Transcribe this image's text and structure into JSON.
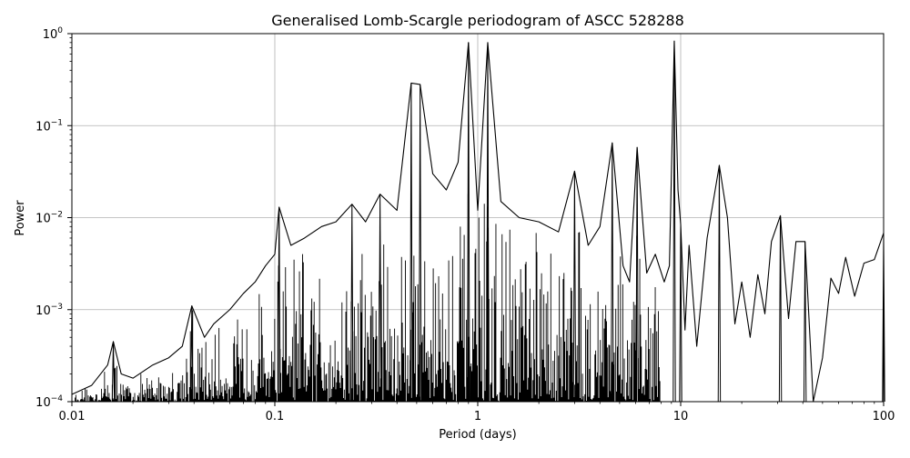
{
  "chart_data": {
    "type": "line",
    "title": "Generalised Lomb-Scargle periodogram of ASCC 528288",
    "xlabel": "Period (days)",
    "ylabel": "Power",
    "xscale": "log",
    "yscale": "log",
    "xlim": [
      0.01,
      100
    ],
    "ylim": [
      0.0001,
      1
    ],
    "grid": true,
    "x_ticks": [
      {
        "value": 0.01,
        "label": "0.01"
      },
      {
        "value": 0.1,
        "label": "0.1"
      },
      {
        "value": 1,
        "label": "1"
      },
      {
        "value": 10,
        "label": "10"
      },
      {
        "value": 100,
        "label": "100"
      }
    ],
    "y_ticks": [
      {
        "value": 0.0001,
        "base": "10",
        "exp": "−4"
      },
      {
        "value": 0.001,
        "base": "10",
        "exp": "−3"
      },
      {
        "value": 0.01,
        "base": "10",
        "exp": "−2"
      },
      {
        "value": 0.1,
        "base": "10",
        "exp": "−1"
      },
      {
        "value": 1,
        "base": "10",
        "exp": "0"
      }
    ],
    "line_color": "#000000",
    "peaks": [
      {
        "x": 0.016,
        "y": 0.00045
      },
      {
        "x": 0.039,
        "y": 0.0011
      },
      {
        "x": 0.105,
        "y": 0.013
      },
      {
        "x": 0.24,
        "y": 0.014
      },
      {
        "x": 0.33,
        "y": 0.018
      },
      {
        "x": 0.47,
        "y": 0.29
      },
      {
        "x": 0.52,
        "y": 0.28
      },
      {
        "x": 0.9,
        "y": 0.8
      },
      {
        "x": 1.12,
        "y": 0.8
      },
      {
        "x": 3.0,
        "y": 0.032
      },
      {
        "x": 4.6,
        "y": 0.065
      },
      {
        "x": 6.1,
        "y": 0.058
      },
      {
        "x": 9.3,
        "y": 0.83
      },
      {
        "x": 10.0,
        "y": 0.0085
      },
      {
        "x": 15.5,
        "y": 0.037
      },
      {
        "x": 31.0,
        "y": 0.0105
      },
      {
        "x": 41.0,
        "y": 0.0055
      },
      {
        "x": 100.0,
        "y": 0.0068
      }
    ],
    "series": [
      {
        "color": "#000000",
        "x": [
          0.01,
          0.0125,
          0.015,
          0.016,
          0.0175,
          0.02,
          0.025,
          0.03,
          0.035,
          0.039,
          0.045,
          0.05,
          0.06,
          0.07,
          0.08,
          0.09,
          0.1,
          0.105,
          0.12,
          0.14,
          0.17,
          0.2,
          0.24,
          0.28,
          0.33,
          0.4,
          0.47,
          0.52,
          0.6,
          0.7,
          0.8,
          0.9,
          1.0,
          1.12,
          1.3,
          1.6,
          2.0,
          2.5,
          3.0,
          3.5,
          4.0,
          4.6,
          5.2,
          5.6,
          6.1,
          6.8,
          7.5,
          8.3,
          8.8,
          9.3,
          9.7,
          10.0,
          10.5,
          11.0,
          12.0,
          13.5,
          15.5,
          17.0,
          18.5,
          20.0,
          22.0,
          24.0,
          26.0,
          28.0,
          31.0,
          34.0,
          37.0,
          41.0,
          45.0,
          50.0,
          55.0,
          60.0,
          65.0,
          72.0,
          80.0,
          90.0,
          100.0
        ],
        "y": [
          0.00012,
          0.00015,
          0.00025,
          0.00045,
          0.0002,
          0.00018,
          0.00025,
          0.0003,
          0.0004,
          0.0011,
          0.0005,
          0.0007,
          0.001,
          0.0015,
          0.002,
          0.003,
          0.004,
          0.013,
          0.005,
          0.006,
          0.008,
          0.009,
          0.014,
          0.009,
          0.018,
          0.012,
          0.29,
          0.28,
          0.03,
          0.02,
          0.04,
          0.8,
          0.012,
          0.8,
          0.015,
          0.01,
          0.009,
          0.007,
          0.032,
          0.005,
          0.008,
          0.065,
          0.003,
          0.002,
          0.058,
          0.0025,
          0.004,
          0.002,
          0.003,
          0.83,
          0.02,
          0.0085,
          0.0006,
          0.005,
          0.0004,
          0.006,
          0.037,
          0.01,
          0.0007,
          0.002,
          0.0005,
          0.0024,
          0.0009,
          0.0055,
          0.0105,
          0.0008,
          0.0055,
          0.0055,
          0.0001,
          0.0003,
          0.0022,
          0.0015,
          0.0037,
          0.0014,
          0.0032,
          0.0035,
          0.0068
        ]
      }
    ]
  }
}
